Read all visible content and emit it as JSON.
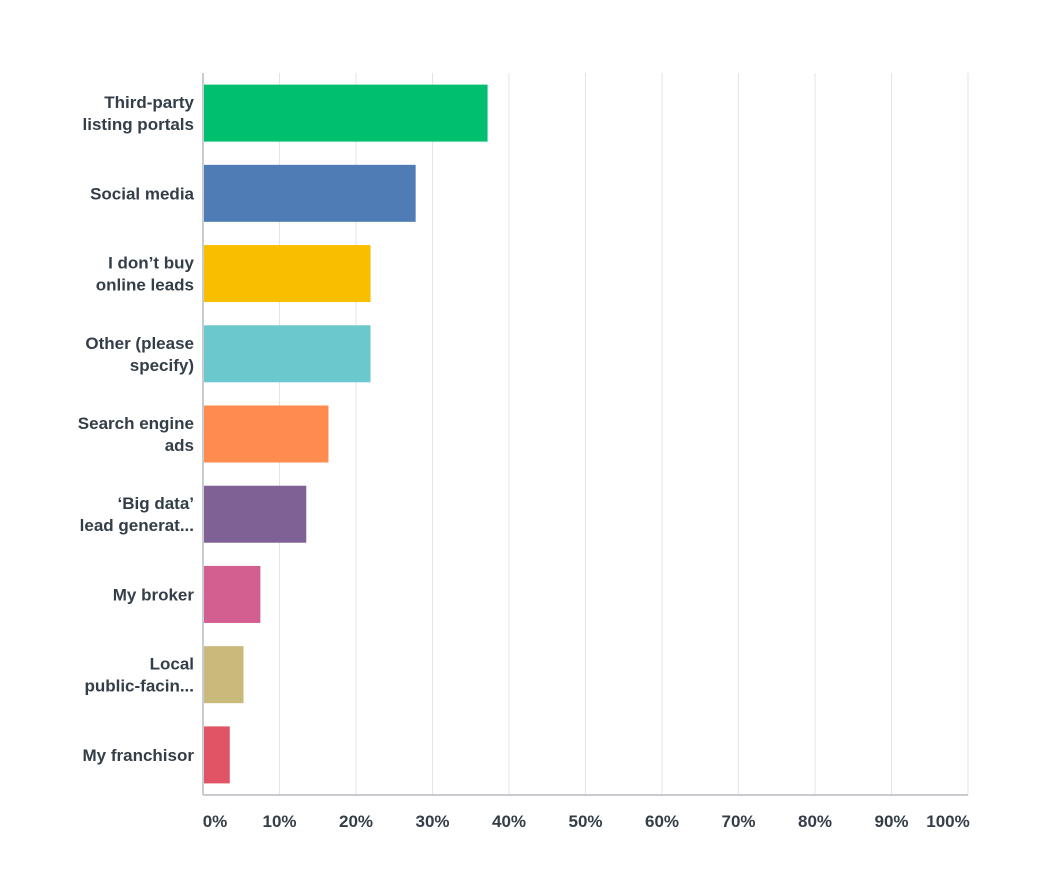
{
  "chart_data": {
    "type": "bar",
    "orientation": "horizontal",
    "categories": [
      [
        "Third-party",
        "listing portals"
      ],
      [
        "Social media"
      ],
      [
        "I don’t buy",
        "online leads"
      ],
      [
        "Other (please",
        "specify)"
      ],
      [
        "Search engine",
        "ads"
      ],
      [
        "‘Big data’",
        "lead generat..."
      ],
      [
        "My broker"
      ],
      [
        "Local",
        "public-facin..."
      ],
      [
        "My franchisor"
      ]
    ],
    "values": [
      37.2,
      27.8,
      21.9,
      21.9,
      16.4,
      13.5,
      7.5,
      5.3,
      3.5
    ],
    "colors": [
      "#00bf6f",
      "#507cb6",
      "#f9be00",
      "#6bc8cd",
      "#ff8b4f",
      "#7f6195",
      "#d25f90",
      "#c9b97b",
      "#e05465"
    ],
    "xlim": [
      0,
      100
    ],
    "xticks": [
      "0%",
      "10%",
      "20%",
      "30%",
      "40%",
      "50%",
      "60%",
      "70%",
      "80%",
      "90%",
      "100%"
    ],
    "grid": true,
    "title": "",
    "xlabel": "",
    "ylabel": ""
  }
}
